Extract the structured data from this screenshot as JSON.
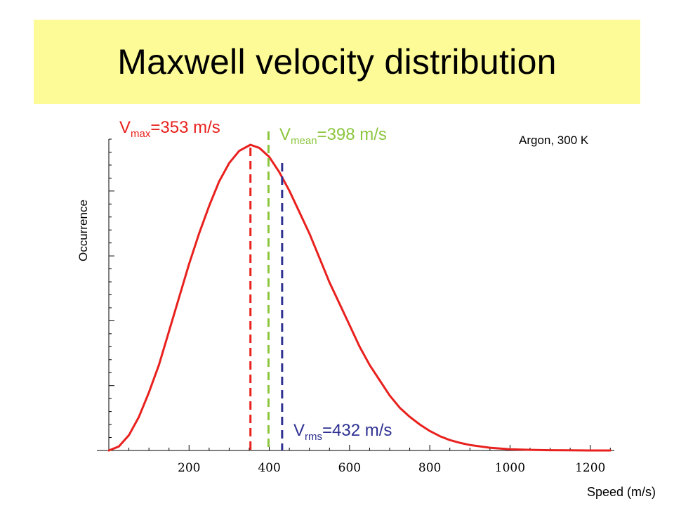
{
  "title": "Maxwell velocity distribution",
  "colors": {
    "title_band": "#fdfb97",
    "curve": "#e8211e",
    "vmax": "#e8211e",
    "vmean": "#8cc63f",
    "vrms": "#2e3192"
  },
  "chart_data": {
    "type": "line",
    "xlabel": "Speed (m/s)",
    "ylabel": "Occurrence",
    "xlim": [
      0,
      1260
    ],
    "xticks": [
      200,
      400,
      600,
      800,
      1000,
      1200
    ],
    "ylim": [
      0,
      1.0
    ],
    "annotation": "Argon, 300 K",
    "series": [
      {
        "x": [
          0,
          25,
          50,
          75,
          100,
          125,
          150,
          175,
          200,
          225,
          250,
          275,
          300,
          325,
          353,
          375,
          400,
          425,
          450,
          475,
          500,
          525,
          550,
          575,
          600,
          625,
          650,
          675,
          700,
          725,
          750,
          775,
          800,
          825,
          850,
          875,
          900,
          950,
          1000,
          1050,
          1100,
          1150,
          1200,
          1250
        ],
        "y": [
          0,
          0.013,
          0.05,
          0.11,
          0.19,
          0.28,
          0.39,
          0.5,
          0.61,
          0.71,
          0.8,
          0.88,
          0.94,
          0.98,
          1.0,
          0.99,
          0.96,
          0.91,
          0.85,
          0.78,
          0.71,
          0.63,
          0.55,
          0.48,
          0.41,
          0.34,
          0.28,
          0.23,
          0.18,
          0.14,
          0.11,
          0.085,
          0.064,
          0.047,
          0.034,
          0.025,
          0.018,
          0.009,
          0.004,
          0.002,
          0.001,
          0.0004,
          0.0001,
          0
        ]
      }
    ],
    "markers": [
      {
        "id": "vmax",
        "label": "V",
        "sub": "max",
        "value_text": "=353 m/s",
        "x": 353
      },
      {
        "id": "vmean",
        "label": "V",
        "sub": "mean",
        "value_text": "=398 m/s",
        "x": 398
      },
      {
        "id": "vrms",
        "label": "V",
        "sub": "rms",
        "value_text": "=432 m/s",
        "x": 432
      }
    ]
  }
}
